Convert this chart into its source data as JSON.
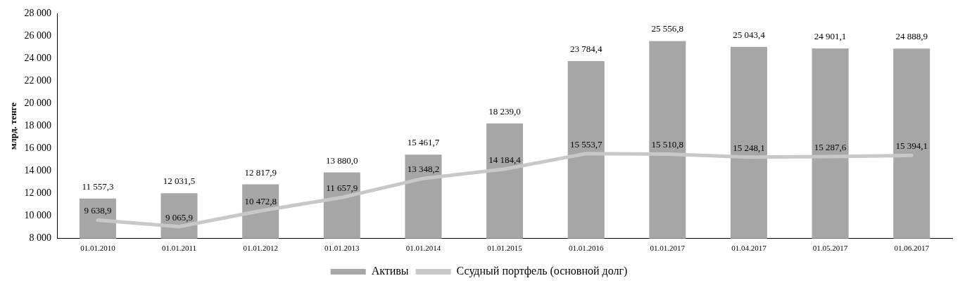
{
  "chart_data": {
    "type": "bar",
    "ylabel": "млрд. тенге",
    "categories": [
      "01.01.2010",
      "01.01.2011",
      "01.01.2012",
      "01.01.2013",
      "01.01.2014",
      "01.01.2015",
      "01.01.2016",
      "01.01.2017",
      "01.04.2017",
      "01.05.2017",
      "01.06.2017"
    ],
    "series": [
      {
        "name": "Активы",
        "color": "#a6a6a6",
        "values": [
          11557.3,
          12031.5,
          12817.9,
          13880.0,
          15461.7,
          18239.0,
          23784.4,
          25556.8,
          25043.4,
          24901.1,
          24888.9
        ],
        "value_labels": [
          "11 557,3",
          "12 031,5",
          "12 817,9",
          "13 880,0",
          "15 461,7",
          "18 239,0",
          "23 784,4",
          "25 556,8",
          "25 043,4",
          "24 901,1",
          "24 888,9"
        ]
      },
      {
        "name": "Ссудный портфель (основной долг)",
        "type": "line",
        "color": "#c8c8c8",
        "values": [
          9638.9,
          9065.9,
          10472.8,
          11657.9,
          13348.2,
          14184.4,
          15553.7,
          15510.8,
          15248.1,
          15287.6,
          15394.1
        ],
        "value_labels": [
          "9 638,9",
          "9 065,9",
          "10 472,8",
          "11 657,9",
          "13 348,2",
          "14 184,4",
          "15 553,7",
          "15 510,8",
          "15 248,1",
          "15 287,6",
          "15 394,1"
        ]
      }
    ],
    "ylim": [
      8000,
      28000
    ],
    "yticks": [
      {
        "value": 8000,
        "label": "8 000"
      },
      {
        "value": 10000,
        "label": "10 000"
      },
      {
        "value": 12000,
        "label": "12 000"
      },
      {
        "value": 14000,
        "label": "14 000"
      },
      {
        "value": 16000,
        "label": "16 000"
      },
      {
        "value": 18000,
        "label": "18 000"
      },
      {
        "value": 20000,
        "label": "20 000"
      },
      {
        "value": 22000,
        "label": "22 000"
      },
      {
        "value": 24000,
        "label": "24 000"
      },
      {
        "value": 26000,
        "label": "26 000"
      },
      {
        "value": 28000,
        "label": "28 000"
      }
    ],
    "grid": false,
    "legend": "bottom",
    "marker": "none"
  }
}
